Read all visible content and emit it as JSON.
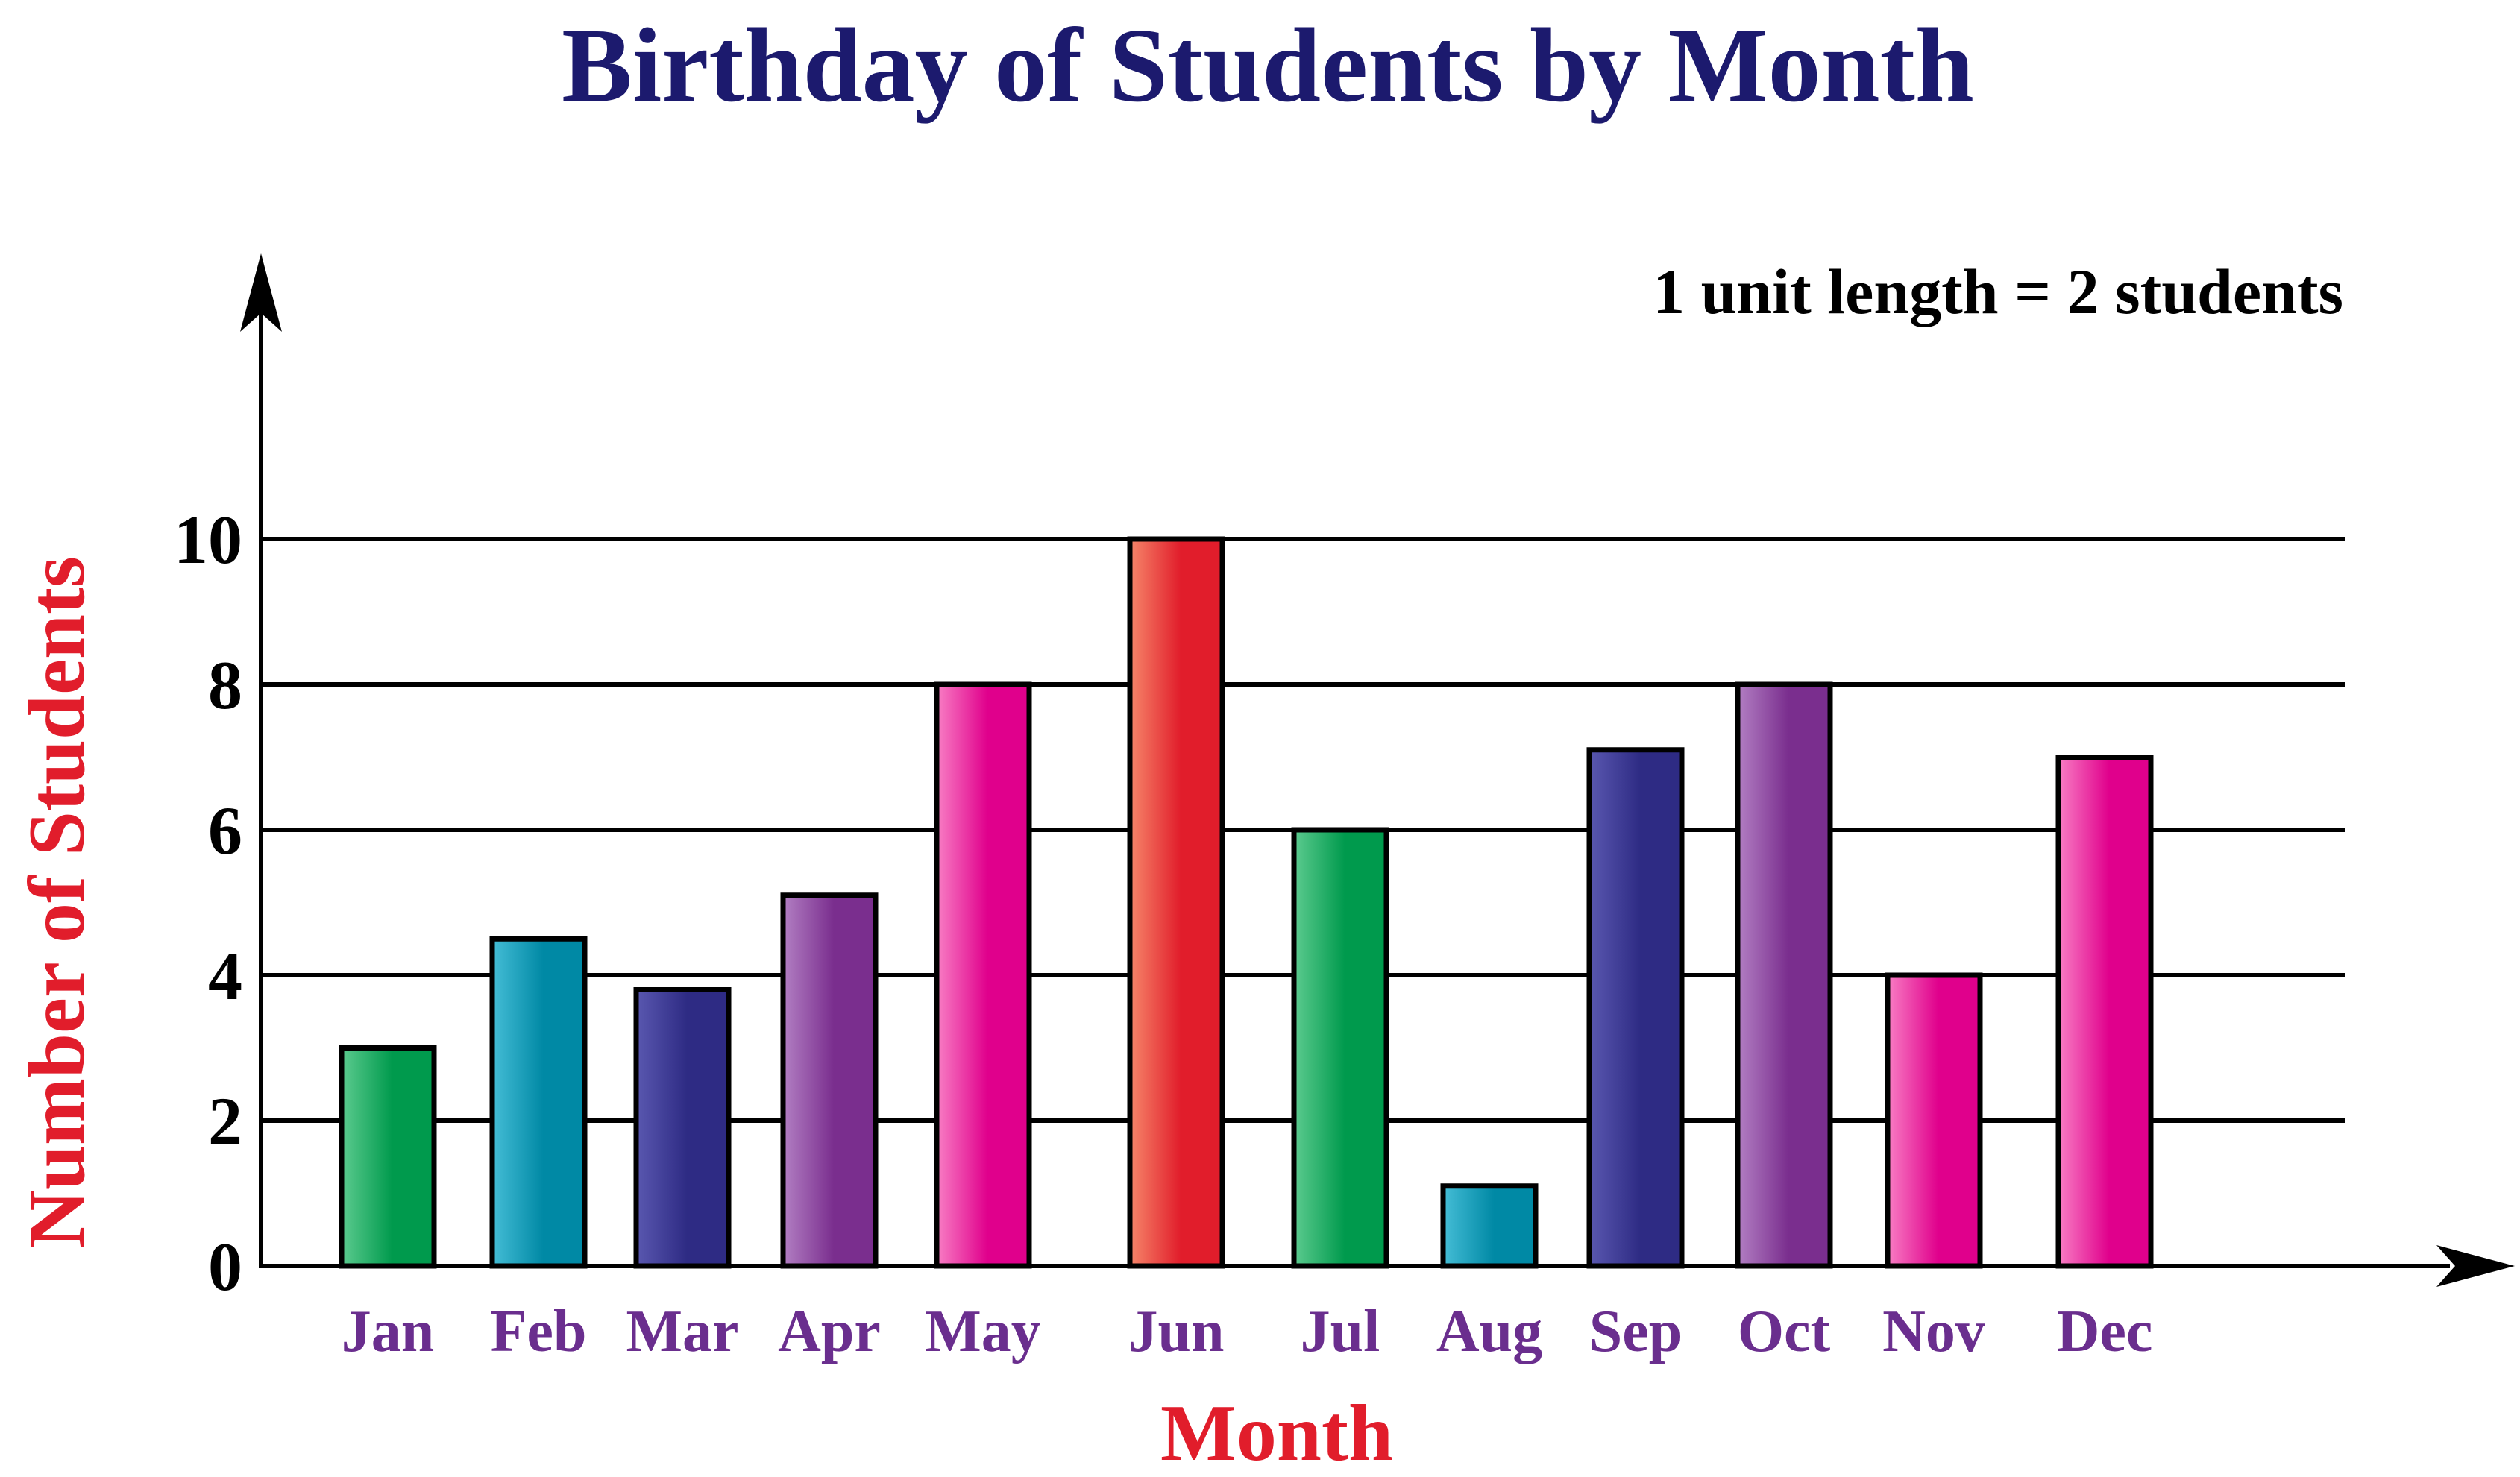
{
  "chart_data": {
    "type": "bar",
    "title": "Birthday of Students by Month",
    "annotation": "1 unit length = 2 students",
    "xlabel": "Month",
    "ylabel": "Number of Students",
    "categories": [
      "Jan",
      "Feb",
      "Mar",
      "Apr",
      "May",
      "Jun",
      "Jul",
      "Aug",
      "Sep",
      "Oct",
      "Nov",
      "Dec"
    ],
    "values": [
      3,
      4.5,
      3.8,
      5.1,
      8,
      10,
      6,
      1.1,
      7.1,
      8,
      4,
      7
    ],
    "yticks": [
      0,
      2,
      4,
      6,
      8,
      10
    ],
    "ylim": [
      0,
      10
    ],
    "grid": true,
    "bar_colors": [
      {
        "light": "#5ccb8f",
        "dark": "#009a4d"
      },
      {
        "light": "#45bdd6",
        "dark": "#0089a5"
      },
      {
        "light": "#5a58b0",
        "dark": "#2e2b84"
      },
      {
        "light": "#b27fc3",
        "dark": "#7a2e8e"
      },
      {
        "light": "#f87ec4",
        "dark": "#e0008c"
      },
      {
        "light": "#f6866a",
        "dark": "#e11d2b"
      },
      {
        "light": "#5ccb8f",
        "dark": "#009a4d"
      },
      {
        "light": "#45bdd6",
        "dark": "#0089a5"
      },
      {
        "light": "#5a58b0",
        "dark": "#2e2b84"
      },
      {
        "light": "#b27fc3",
        "dark": "#7a2e8e"
      },
      {
        "light": "#f87ec4",
        "dark": "#e0008c"
      },
      {
        "light": "#f87ec4",
        "dark": "#e0008c"
      }
    ],
    "colors": {
      "title": "#1c1a6e",
      "axis_label": "#e11d2b",
      "category_label": "#6a2e8e",
      "axis": "#000000",
      "grid": "#000000"
    }
  }
}
